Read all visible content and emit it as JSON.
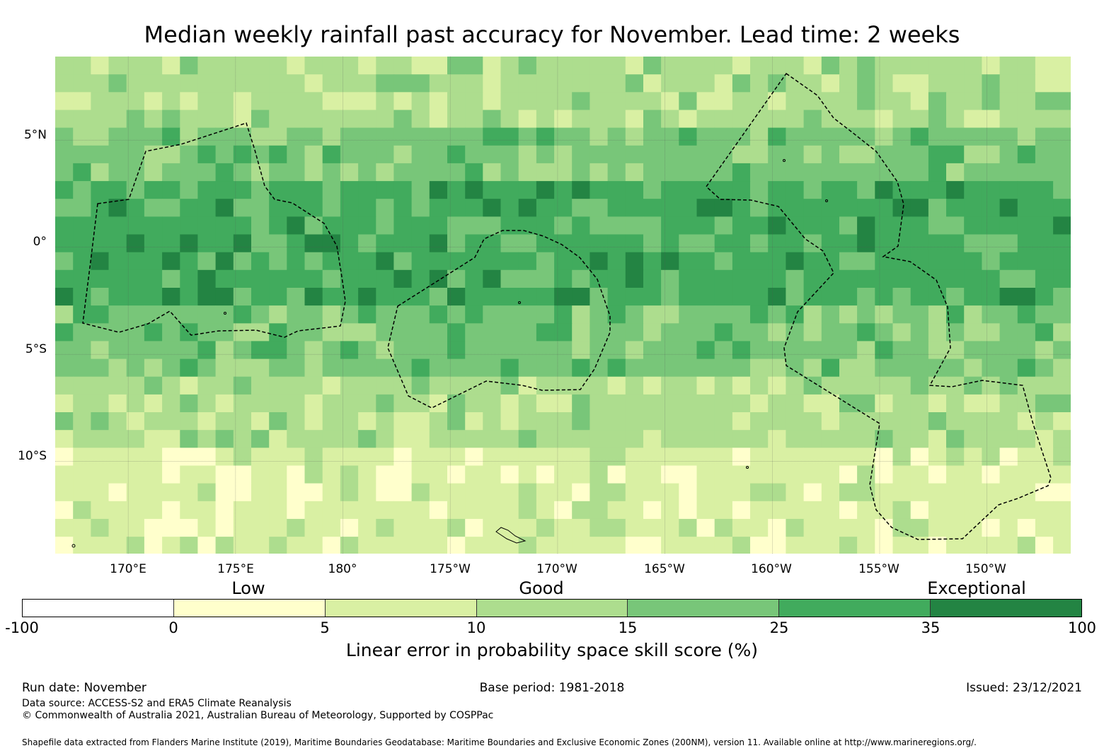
{
  "title": "Median weekly rainfall past accuracy for November. Lead time: 2 weeks",
  "map": {
    "lat_labels": [
      "5°N",
      "0°",
      "5°S",
      "10°S"
    ],
    "lon_labels": [
      "170°E",
      "175°E",
      "180°",
      "175°W",
      "170°W",
      "165°W",
      "160°W",
      "155°W",
      "150°W"
    ],
    "lon_range_deg_east": [
      166.6,
      213.9
    ],
    "lat_range_deg": [
      -14.3,
      8.9
    ],
    "graticule_lons": [
      170,
      175,
      180,
      185,
      190,
      195,
      200,
      205,
      210
    ],
    "graticule_lats": [
      5,
      0,
      -5,
      -10
    ],
    "zone_bands": [
      {
        "lat_max": 9,
        "lat_min": 5.5,
        "typical_class": 3
      },
      {
        "lat_max": 5.5,
        "lat_min": 3,
        "typical_class": 4
      },
      {
        "lat_max": 3,
        "lat_min": -2.5,
        "typical_class": 5
      },
      {
        "lat_max": -2.5,
        "lat_min": -6,
        "typical_class": 4
      },
      {
        "lat_max": -6,
        "lat_min": -9.5,
        "typical_class": 3
      },
      {
        "lat_max": -9.5,
        "lat_min": -14.5,
        "typical_class": 2
      }
    ],
    "outline_style": "dashed boundaries of exclusive economic zones"
  },
  "colorbar": {
    "qualitative_labels": [
      "Low",
      "Good",
      "Exceptional"
    ],
    "ticks": [
      "-100",
      "0",
      "5",
      "10",
      "15",
      "25",
      "35",
      "100"
    ],
    "colors": [
      "#ffffff",
      "#ffffcc",
      "#d9f0a3",
      "#addd8e",
      "#78c679",
      "#41ab5d",
      "#238443"
    ],
    "label": "Linear error in probability space skill score (%)"
  },
  "footer": {
    "run_date": "Run date: November",
    "base_period": "Base period: 1981-2018",
    "issued": "Issued: 23/12/2021",
    "data_source": "Data source: ACCESS-S2 and ERA5 Climate Reanalysis",
    "copyright": "© Commonwealth of Australia 2021, Australian Bureau of Meteorology, Supported by COSPPac",
    "shapefile": "Shapefile data extracted from Flanders Marine Institute (2019), Maritime Boundaries Geodatabase: Maritime Boundaries and Exclusive Economic Zones (200NM), version 11. Available online at http://www.marineregions.org/."
  }
}
